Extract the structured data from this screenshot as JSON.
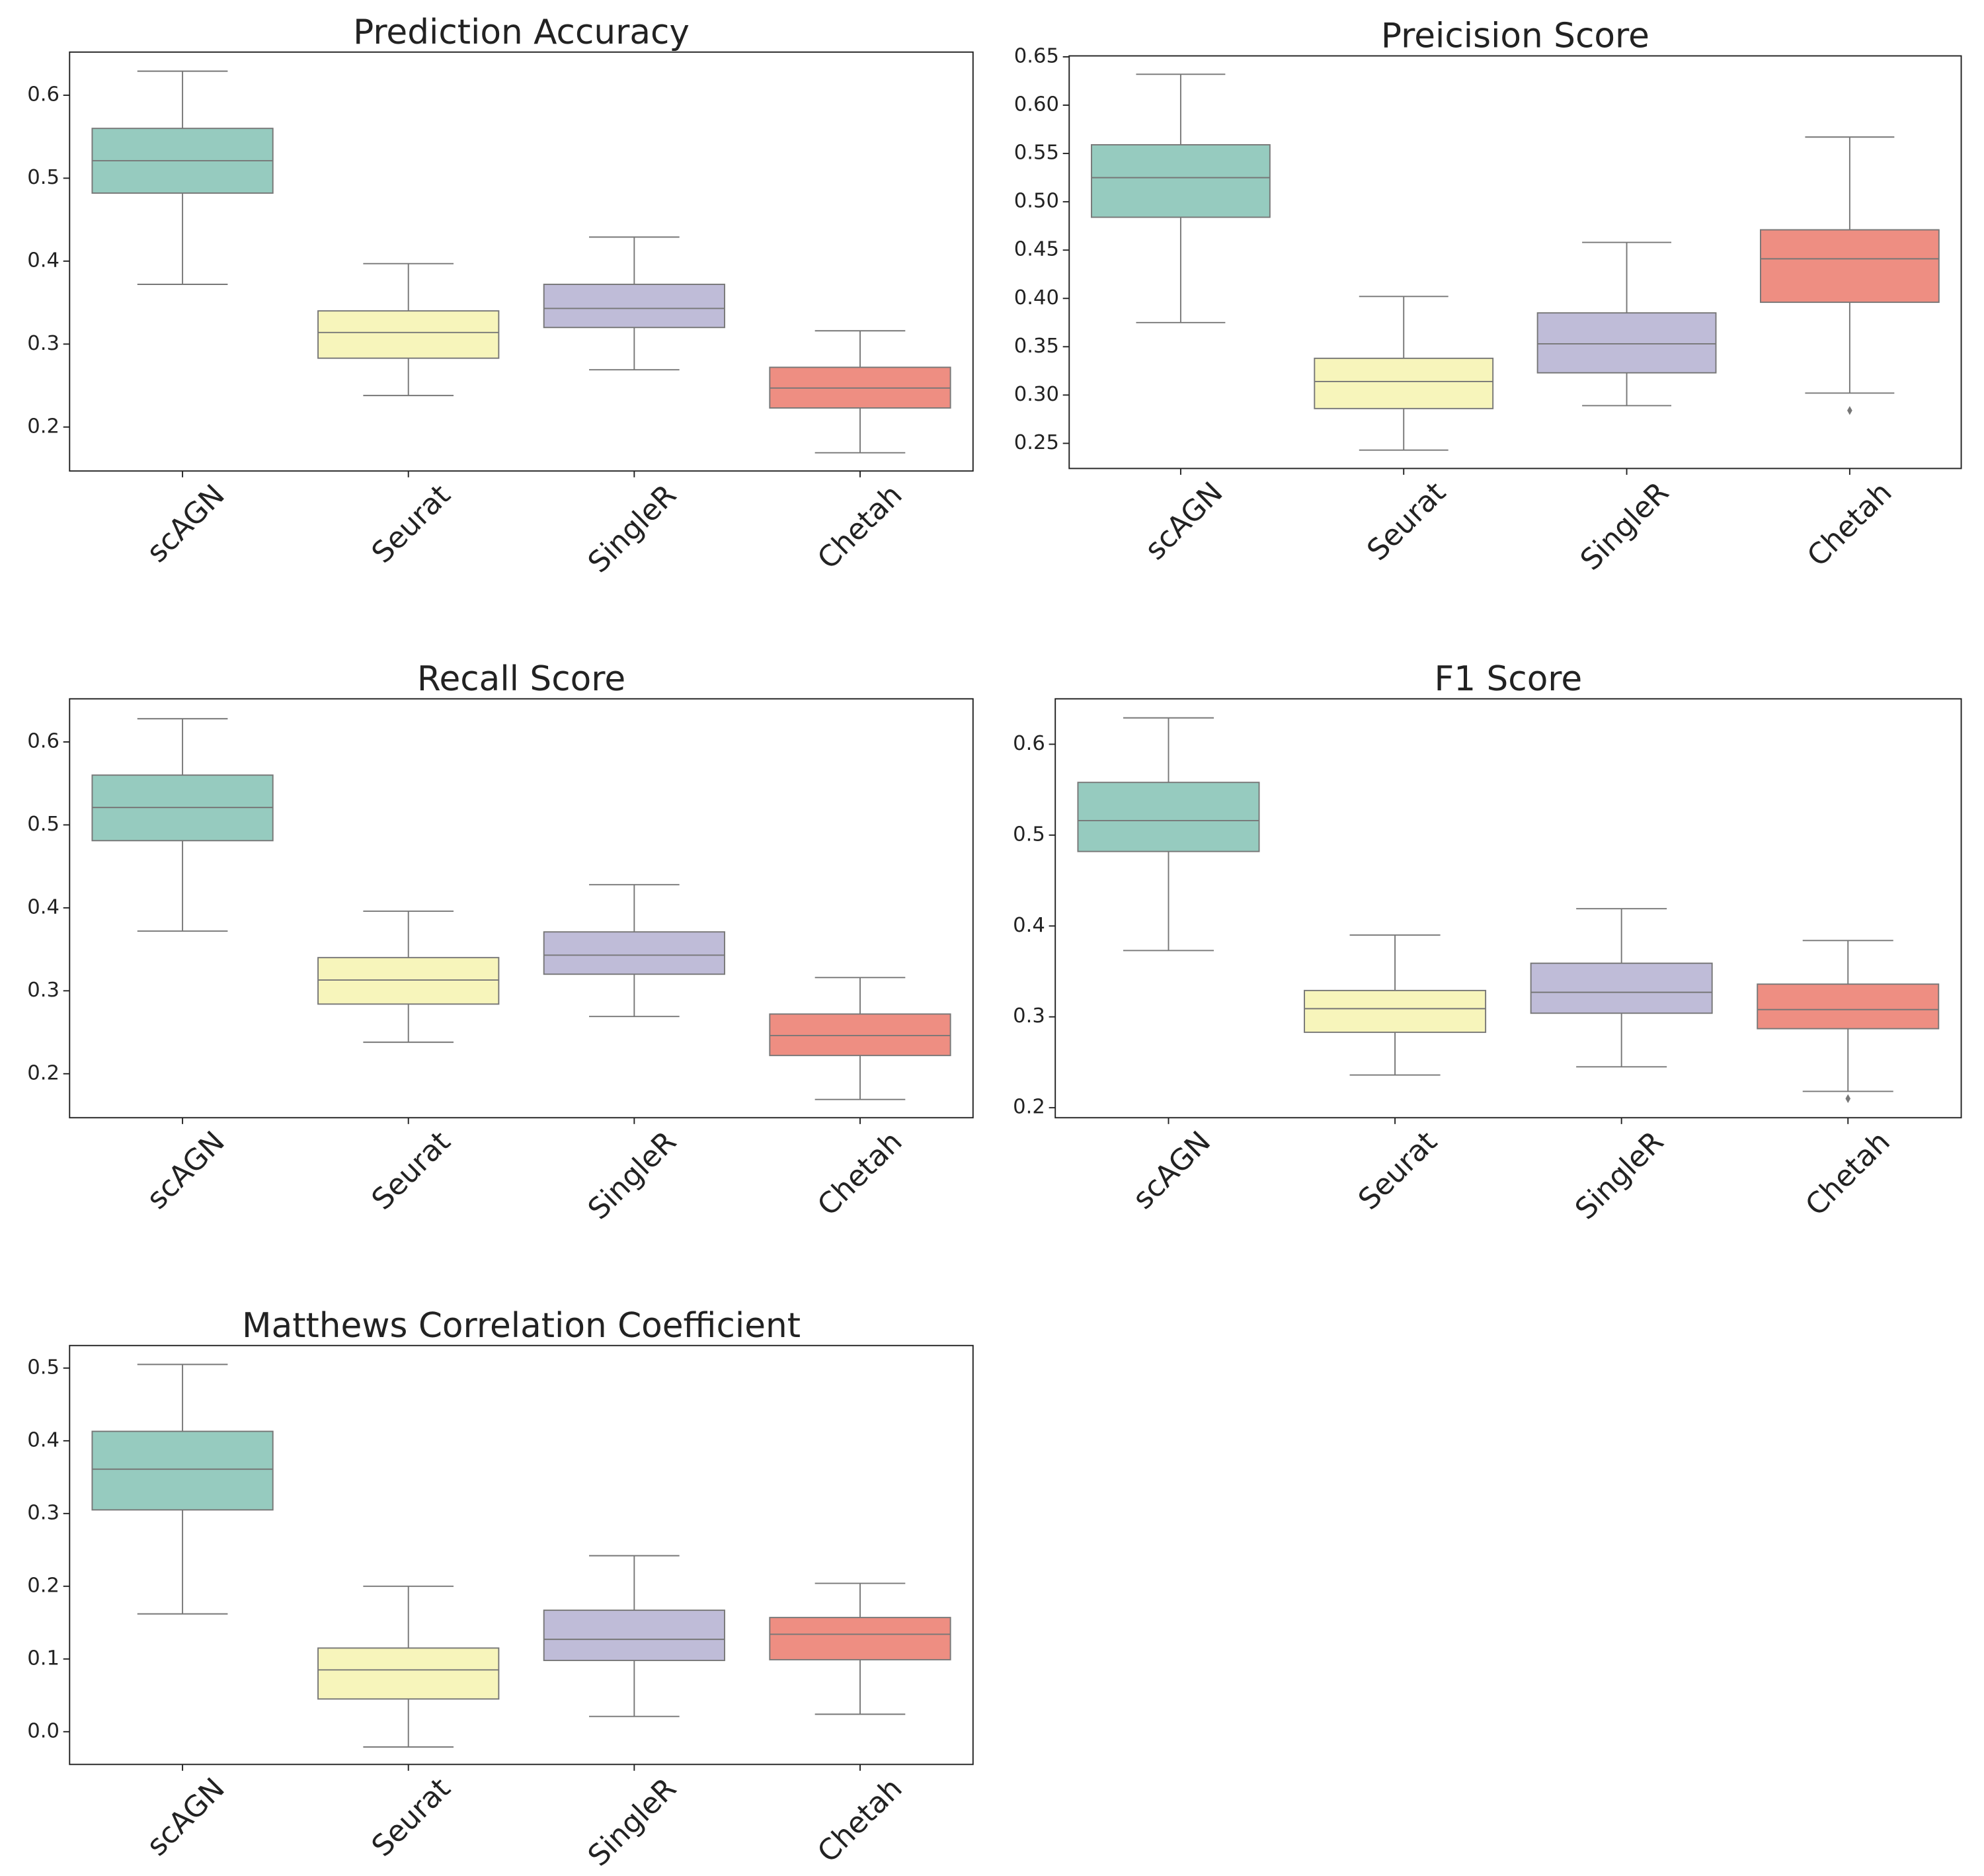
{
  "chart_data": [
    {
      "type": "box",
      "title": "Prediction Accuracy",
      "categories": [
        "scAGN",
        "Seurat",
        "SingleR",
        "Chetah"
      ],
      "colors": [
        "#96cbbf",
        "#f7f5bb",
        "#bfbcd8",
        "#ee8e82"
      ],
      "whislo": [
        0.372,
        0.238,
        0.269,
        0.169
      ],
      "q1": [
        0.482,
        0.283,
        0.32,
        0.223
      ],
      "median": [
        0.521,
        0.314,
        0.343,
        0.247
      ],
      "q3": [
        0.56,
        0.34,
        0.372,
        0.272
      ],
      "whishi": [
        0.629,
        0.397,
        0.429,
        0.316
      ],
      "fliers": [
        [],
        [],
        [],
        []
      ],
      "ylim": [
        0.147,
        0.652
      ],
      "yticks": [
        0.2,
        0.3,
        0.4,
        0.5,
        0.6
      ]
    },
    {
      "type": "box",
      "title": "Preicision Score",
      "categories": [
        "scAGN",
        "Seurat",
        "SingleR",
        "Chetah"
      ],
      "colors": [
        "#96cbbf",
        "#f7f5bb",
        "#bfbcd8",
        "#ee8e82"
      ],
      "whislo": [
        0.375,
        0.243,
        0.289,
        0.302
      ],
      "q1": [
        0.484,
        0.286,
        0.323,
        0.396
      ],
      "median": [
        0.525,
        0.314,
        0.353,
        0.441
      ],
      "q3": [
        0.559,
        0.338,
        0.385,
        0.471
      ],
      "whishi": [
        0.632,
        0.402,
        0.458,
        0.567
      ],
      "fliers": [
        [],
        [],
        [],
        [
          0.284
        ]
      ],
      "ylim": [
        0.224,
        0.651
      ],
      "yticks": [
        0.25,
        {
          "value": 0.3,
          "label": "0.30"
        },
        0.35,
        {
          "value": 0.4,
          "label": "0.40"
        },
        0.45,
        {
          "value": 0.5,
          "label": "0.50"
        },
        0.55,
        {
          "value": 0.6,
          "label": "0.60"
        },
        0.65
      ]
    },
    {
      "type": "box",
      "title": "Recall Score",
      "categories": [
        "scAGN",
        "Seurat",
        "SingleR",
        "Chetah"
      ],
      "colors": [
        "#96cbbf",
        "#f7f5bb",
        "#bfbcd8",
        "#ee8e82"
      ],
      "whislo": [
        0.372,
        0.238,
        0.269,
        0.169
      ],
      "q1": [
        0.481,
        0.284,
        0.32,
        0.222
      ],
      "median": [
        0.521,
        0.313,
        0.343,
        0.246
      ],
      "q3": [
        0.56,
        0.34,
        0.371,
        0.272
      ],
      "whishi": [
        0.628,
        0.396,
        0.428,
        0.316
      ],
      "fliers": [
        [],
        [],
        [],
        []
      ],
      "ylim": [
        0.147,
        0.652
      ],
      "yticks": [
        0.2,
        0.3,
        0.4,
        0.5,
        0.6
      ]
    },
    {
      "type": "box",
      "title": "F1 Score",
      "categories": [
        "scAGN",
        "Seurat",
        "SingleR",
        "Chetah"
      ],
      "colors": [
        "#96cbbf",
        "#f7f5bb",
        "#bfbcd8",
        "#ee8e82"
      ],
      "whislo": [
        0.373,
        0.236,
        0.245,
        0.218
      ],
      "q1": [
        0.482,
        0.283,
        0.304,
        0.287
      ],
      "median": [
        0.516,
        0.309,
        0.327,
        0.308
      ],
      "q3": [
        0.558,
        0.329,
        0.359,
        0.336
      ],
      "whishi": [
        0.629,
        0.39,
        0.419,
        0.384
      ],
      "fliers": [
        [],
        [],
        [],
        [
          0.21
        ]
      ],
      "ylim": [
        0.189,
        0.65
      ],
      "yticks": [
        0.2,
        0.3,
        0.4,
        0.5,
        0.6
      ]
    },
    {
      "type": "box",
      "title": "Matthews Correlation Coefficient",
      "categories": [
        "scAGN",
        "Seurat",
        "SingleR",
        "Chetah"
      ],
      "colors": [
        "#96cbbf",
        "#f7f5bb",
        "#bfbcd8",
        "#ee8e82"
      ],
      "whislo": [
        0.162,
        -0.021,
        0.021,
        0.024
      ],
      "q1": [
        0.305,
        0.045,
        0.098,
        0.099
      ],
      "median": [
        0.361,
        0.085,
        0.127,
        0.134
      ],
      "q3": [
        0.413,
        0.115,
        0.167,
        0.157
      ],
      "whishi": [
        0.505,
        0.2,
        0.242,
        0.204
      ],
      "fliers": [
        [],
        [],
        [],
        []
      ],
      "ylim": [
        -0.045,
        0.531
      ],
      "yticks": [
        {
          "value": 0,
          "label": "0.0"
        },
        0.1,
        0.2,
        0.3,
        0.4,
        0.5
      ]
    }
  ]
}
